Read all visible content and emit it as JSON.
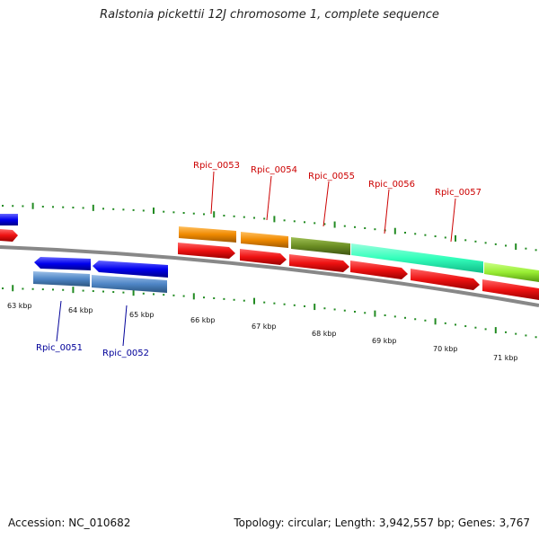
{
  "title": "Ralstonia pickettii 12J chromosome 1, complete sequence",
  "footer": {
    "accession": "Accession: NC_010682",
    "topology": "Topology: circular; Length: 3,942,557 bp; Genes: 3,767"
  },
  "scale_labels": [
    "63 kbp",
    "64 kbp",
    "65 kbp",
    "66 kbp",
    "67 kbp",
    "68 kbp",
    "69 kbp",
    "70 kbp",
    "71 kbp"
  ],
  "gene_labels_top": [
    "Rpic_0053",
    "Rpic_0054",
    "Rpic_0055",
    "Rpic_0056",
    "Rpic_0057"
  ],
  "gene_labels_bottom": [
    "Rpic_0051",
    "Rpic_0052"
  ],
  "colors": {
    "label_top": "#cc0000",
    "label_bottom": "#000099",
    "cds_red": "#ee1111",
    "gene_blue": "#0000ee",
    "feature_steelblue": "#4f86c6",
    "feature_orange": "#f08a00",
    "feature_olive": "#6b8e23",
    "feature_aquamarine": "#33ffbb",
    "feature_lightgreen": "#99ee33",
    "tick_green": "#228b22",
    "backbone": "#888888"
  }
}
